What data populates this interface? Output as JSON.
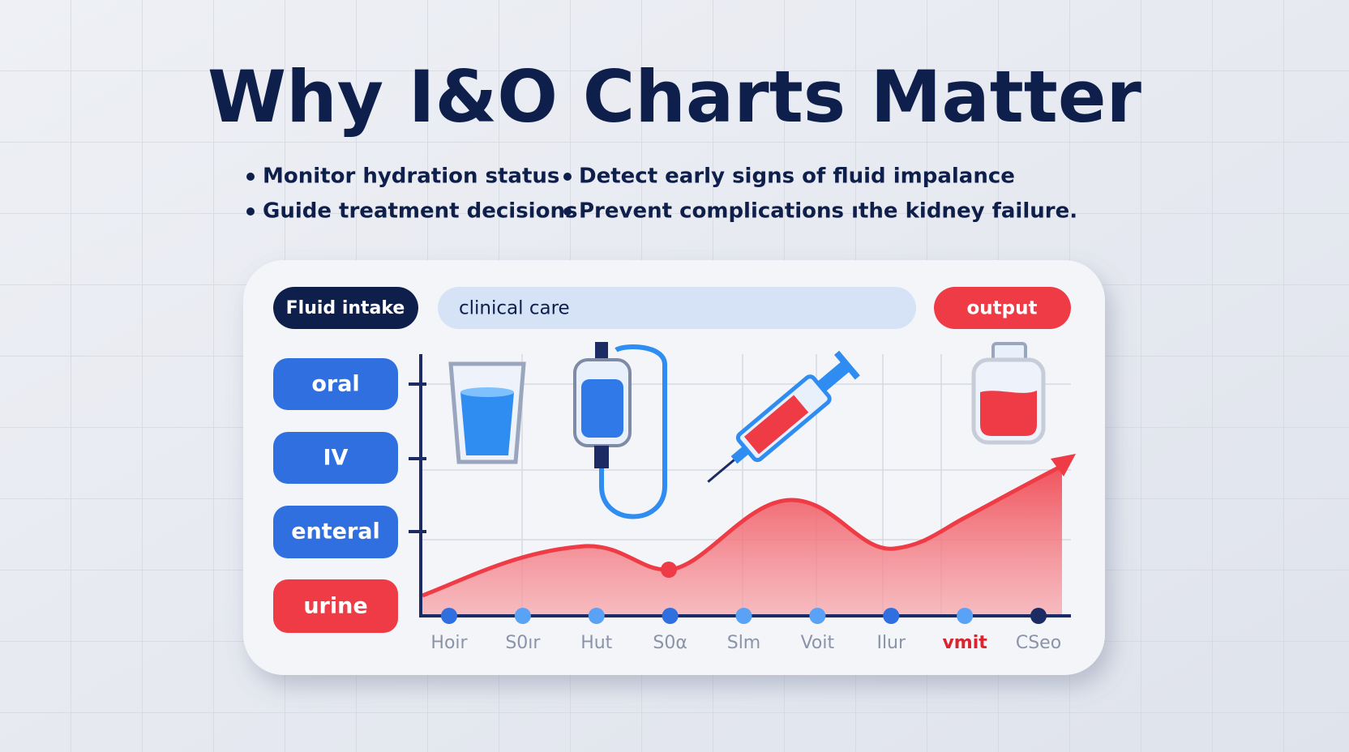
{
  "header": {
    "title": "Why I&O Charts Matter"
  },
  "bullets": [
    "Monitor hydration status",
    "Detect early signs of fluid impalance",
    "Guide treatment decisions",
    "Prevent complications ıthe kidney failure."
  ],
  "card": {
    "tags": [
      "Fluid intake",
      "clinical care",
      "output"
    ],
    "side_labels": [
      "oral",
      "IV",
      "enteral",
      "urine"
    ],
    "x_labels": [
      "Hoir",
      "S0ır",
      "Hut",
      "S0α",
      "Slm",
      "Voit",
      "Ilur",
      "vmit",
      "CSeo"
    ]
  }
}
